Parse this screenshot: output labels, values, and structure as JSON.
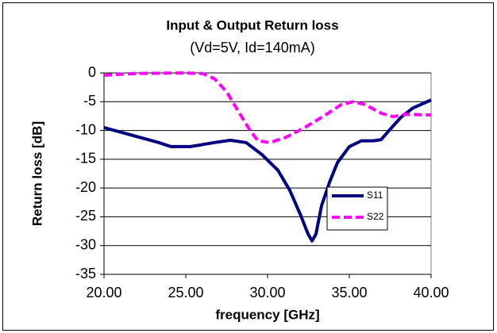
{
  "chart_data": {
    "type": "line",
    "title": "Input & Output Return loss",
    "subtitle": "(Vd=5V, Id=140mA)",
    "x_label": "frequency [GHz]",
    "y_label": "Return loss [dB]",
    "xlim": [
      20,
      40
    ],
    "xticks": [
      {
        "value": 20,
        "label": "20.00"
      },
      {
        "value": 25,
        "label": "25.00"
      },
      {
        "value": 30,
        "label": "30.00"
      },
      {
        "value": 35,
        "label": "35.00"
      },
      {
        "value": 40,
        "label": "40.00"
      }
    ],
    "ylim": [
      -35,
      0
    ],
    "yticks": [
      0,
      -5,
      -10,
      -15,
      -20,
      -25,
      -30,
      -35
    ],
    "grid": true,
    "legend": "right",
    "series": [
      {
        "name": "S11",
        "color": "#000080",
        "dash": false,
        "x": [
          20,
          23.35,
          24.08,
          25.29,
          26.75,
          27.72,
          28.69,
          29.66,
          30.63,
          31.36,
          31.99,
          32.48,
          32.72,
          32.96,
          33.3,
          33.79,
          34.27,
          35.0,
          35.73,
          36.46,
          36.94,
          37.43,
          38.16,
          38.88,
          40
        ],
        "values": [
          -9.5,
          -12.1,
          -12.8,
          -12.8,
          -12.1,
          -11.7,
          -12.1,
          -14.2,
          -16.9,
          -20.4,
          -24.5,
          -28,
          -29.2,
          -28,
          -23.1,
          -19,
          -15.6,
          -12.8,
          -11.8,
          -11.8,
          -11.6,
          -10,
          -7.7,
          -6.1,
          -4.7
        ]
      },
      {
        "name": "S22",
        "color": "#ff00ff",
        "dash": true,
        "x": [
          20,
          21.89,
          24.8,
          26.02,
          26.75,
          27.48,
          28.2,
          28.93,
          29.42,
          30.15,
          31.12,
          32.33,
          33.54,
          34.51,
          35.24,
          35.97,
          36.94,
          37.67,
          38.4,
          40
        ],
        "values": [
          -0.4,
          -0.1,
          0,
          -0.1,
          -1,
          -3.2,
          -6.6,
          -10,
          -11.8,
          -12.1,
          -11.2,
          -9.4,
          -7.3,
          -5.5,
          -5,
          -5.5,
          -7,
          -7.6,
          -7.2,
          -7.3
        ]
      }
    ]
  }
}
